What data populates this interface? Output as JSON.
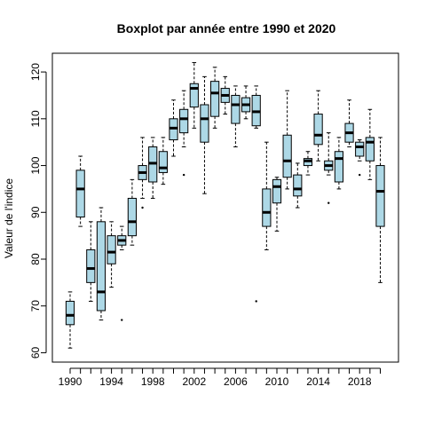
{
  "chart_data": {
    "type": "boxplot",
    "title": "Boxplot par année entre 1990 et 2020",
    "xlabel": "",
    "ylabel": "Valeur de l'indice",
    "ylim": [
      58,
      124
    ],
    "y_ticks": [
      60,
      70,
      80,
      90,
      100,
      110,
      120
    ],
    "x_tick_labels": [
      "1990",
      "1994",
      "1998",
      "2002",
      "2006",
      "2010",
      "2014",
      "2018"
    ],
    "box_fill": "#add8e6",
    "years": [
      {
        "year": 1990,
        "min": 61,
        "q1": 66,
        "median": 68,
        "q3": 71,
        "max": 73,
        "outliers": []
      },
      {
        "year": 1991,
        "min": 87,
        "q1": 89,
        "median": 95,
        "q3": 99,
        "max": 102,
        "outliers": []
      },
      {
        "year": 1992,
        "min": 71,
        "q1": 75,
        "median": 78,
        "q3": 82,
        "max": 88,
        "outliers": []
      },
      {
        "year": 1993,
        "min": 67,
        "q1": 69,
        "median": 73,
        "q3": 88,
        "max": 91,
        "outliers": []
      },
      {
        "year": 1994,
        "min": 74,
        "q1": 79,
        "median": 81.5,
        "q3": 85,
        "max": 88,
        "outliers": []
      },
      {
        "year": 1995,
        "min": 82,
        "q1": 83,
        "median": 84,
        "q3": 85,
        "max": 87,
        "outliers": [
          67
        ]
      },
      {
        "year": 1996,
        "min": 83,
        "q1": 85,
        "median": 88,
        "q3": 93,
        "max": 97,
        "outliers": []
      },
      {
        "year": 1997,
        "min": 93,
        "q1": 97,
        "median": 98.5,
        "q3": 100,
        "max": 106,
        "outliers": [
          91
        ]
      },
      {
        "year": 1998,
        "min": 93,
        "q1": 96.5,
        "median": 100.5,
        "q3": 104,
        "max": 106,
        "outliers": []
      },
      {
        "year": 1999,
        "min": 96,
        "q1": 98.5,
        "median": 99.5,
        "q3": 103,
        "max": 106,
        "outliers": []
      },
      {
        "year": 2000,
        "min": 102,
        "q1": 105.5,
        "median": 108,
        "q3": 110,
        "max": 114,
        "outliers": []
      },
      {
        "year": 2001,
        "min": 104,
        "q1": 107,
        "median": 110,
        "q3": 112,
        "max": 116,
        "outliers": [
          98
        ]
      },
      {
        "year": 2002,
        "min": 108,
        "q1": 112.5,
        "median": 116.5,
        "q3": 117.5,
        "max": 122,
        "outliers": []
      },
      {
        "year": 2003,
        "min": 94,
        "q1": 105,
        "median": 110,
        "q3": 113,
        "max": 119,
        "outliers": []
      },
      {
        "year": 2004,
        "min": 108,
        "q1": 110.5,
        "median": 115.5,
        "q3": 118,
        "max": 121,
        "outliers": []
      },
      {
        "year": 2005,
        "min": 111,
        "q1": 113.5,
        "median": 115,
        "q3": 116.5,
        "max": 119,
        "outliers": []
      },
      {
        "year": 2006,
        "min": 104,
        "q1": 109,
        "median": 113,
        "q3": 115,
        "max": 117,
        "outliers": []
      },
      {
        "year": 2007,
        "min": 110,
        "q1": 111.5,
        "median": 113,
        "q3": 114.5,
        "max": 117,
        "outliers": []
      },
      {
        "year": 2008,
        "min": 108,
        "q1": 108.5,
        "median": 111.5,
        "q3": 115,
        "max": 117,
        "outliers": [
          71
        ]
      },
      {
        "year": 2009,
        "min": 82,
        "q1": 87,
        "median": 90,
        "q3": 95,
        "max": 105,
        "outliers": []
      },
      {
        "year": 2010,
        "min": 86,
        "q1": 92,
        "median": 95.5,
        "q3": 97,
        "max": 97.5,
        "outliers": []
      },
      {
        "year": 2011,
        "min": 95,
        "q1": 97.5,
        "median": 101,
        "q3": 106.5,
        "max": 116,
        "outliers": []
      },
      {
        "year": 2012,
        "min": 91,
        "q1": 93.5,
        "median": 95,
        "q3": 98,
        "max": 100.5,
        "outliers": []
      },
      {
        "year": 2013,
        "min": 98,
        "q1": 100,
        "median": 101,
        "q3": 101.5,
        "max": 103,
        "outliers": []
      },
      {
        "year": 2014,
        "min": 101,
        "q1": 104.5,
        "median": 106.5,
        "q3": 111,
        "max": 116,
        "outliers": []
      },
      {
        "year": 2015,
        "min": 98,
        "q1": 99,
        "median": 100,
        "q3": 101,
        "max": 107,
        "outliers": [
          92
        ]
      },
      {
        "year": 2016,
        "min": 95,
        "q1": 96.5,
        "median": 101.5,
        "q3": 103,
        "max": 106,
        "outliers": []
      },
      {
        "year": 2017,
        "min": 104,
        "q1": 105,
        "median": 107,
        "q3": 109,
        "max": 114,
        "outliers": []
      },
      {
        "year": 2018,
        "min": 101,
        "q1": 102,
        "median": 104,
        "q3": 105,
        "max": 105.5,
        "outliers": [
          98
        ]
      },
      {
        "year": 2019,
        "min": 97,
        "q1": 101,
        "median": 105,
        "q3": 106,
        "max": 112,
        "outliers": []
      },
      {
        "year": 2020,
        "min": 75,
        "q1": 87,
        "median": 94.5,
        "q3": 100,
        "max": 106,
        "outliers": []
      }
    ]
  }
}
